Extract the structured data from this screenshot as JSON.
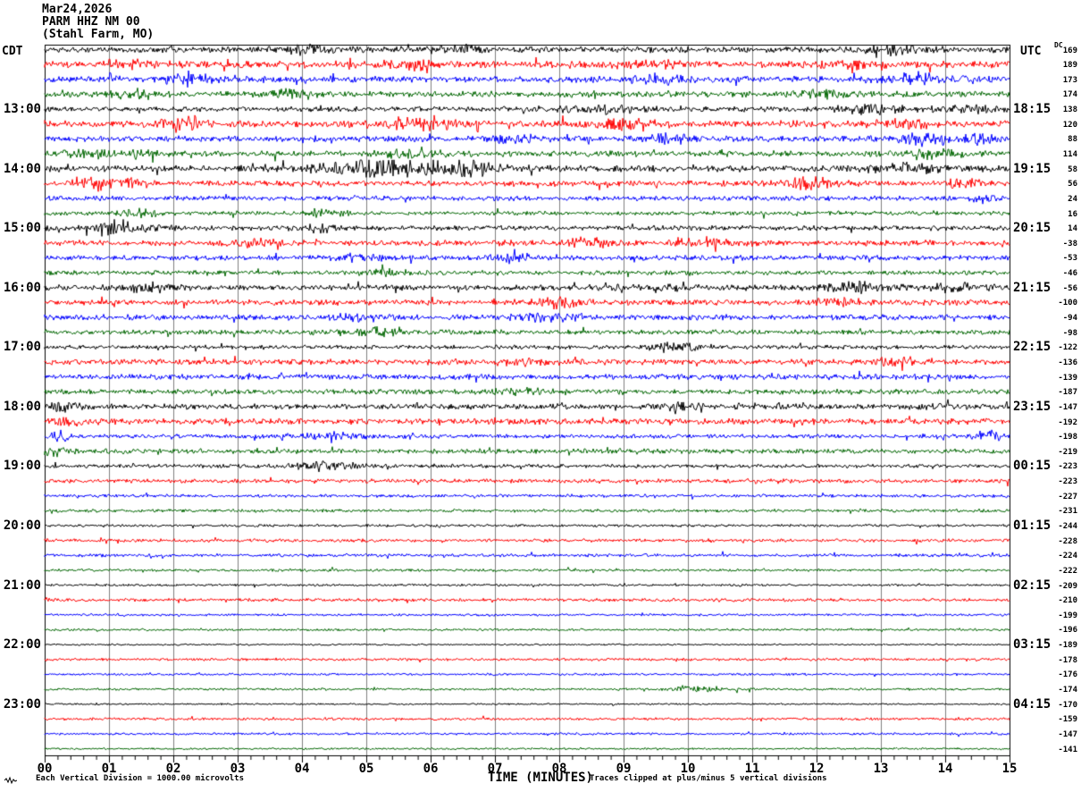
{
  "header": {
    "date": "Mar24,2026",
    "station": "PARM HHZ NM 00",
    "location": "(Stahl Farm, MO)"
  },
  "left_axis": {
    "tz_label": "CDT",
    "hour_labels": [
      {
        "row": 4,
        "label": "13:00"
      },
      {
        "row": 8,
        "label": "14:00"
      },
      {
        "row": 12,
        "label": "15:00"
      },
      {
        "row": 16,
        "label": "16:00"
      },
      {
        "row": 20,
        "label": "17:00"
      },
      {
        "row": 24,
        "label": "18:00"
      },
      {
        "row": 28,
        "label": "19:00"
      },
      {
        "row": 32,
        "label": "20:00"
      },
      {
        "row": 36,
        "label": "21:00"
      },
      {
        "row": 40,
        "label": "22:00"
      },
      {
        "row": 44,
        "label": "23:00"
      }
    ]
  },
  "right_axis": {
    "tz_label": "UTC",
    "dc_label": "DC",
    "hour_labels": [
      {
        "row": 4,
        "label": "18:15"
      },
      {
        "row": 8,
        "label": "19:15"
      },
      {
        "row": 12,
        "label": "20:15"
      },
      {
        "row": 16,
        "label": "21:15"
      },
      {
        "row": 20,
        "label": "22:15"
      },
      {
        "row": 24,
        "label": "23:15"
      },
      {
        "row": 28,
        "label": "00:15"
      },
      {
        "row": 32,
        "label": "01:15"
      },
      {
        "row": 36,
        "label": "02:15"
      },
      {
        "row": 40,
        "label": "03:15"
      },
      {
        "row": 44,
        "label": "04:15"
      }
    ]
  },
  "x_axis": {
    "title": "TIME (MINUTES)",
    "tick_labels": [
      "00",
      "01",
      "02",
      "03",
      "04",
      "05",
      "06",
      "07",
      "08",
      "09",
      "10",
      "11",
      "12",
      "13",
      "14",
      "15"
    ]
  },
  "footer": {
    "scale_note": "Each Vertical Division = 1000.00 microvolts",
    "clip_note": "Traces clipped at plus/minus 5 vertical divisions"
  },
  "colors": {
    "trace_cycle": [
      "#000000",
      "#ff0000",
      "#0000ff",
      "#006600"
    ],
    "grid": "#7f7f7f",
    "frame": "#000000",
    "background": "#ffffff"
  },
  "chart_data": {
    "type": "line",
    "title": "Helicorder seismogram PARM HHZ NM 00 (Stahl Farm, MO)",
    "x_range_minutes": [
      0,
      15
    ],
    "row_duration_minutes": 15,
    "rows_per_hour": 4,
    "num_rows": 48,
    "clip_divisions": 5,
    "microvolts_per_division": 1000.0,
    "rows": [
      {
        "dc": 169,
        "amp": 2.0,
        "bursts": [
          [
            4.1,
            2,
            0.3
          ],
          [
            6.4,
            2,
            0.25
          ],
          [
            13.2,
            2.5,
            0.3
          ]
        ]
      },
      {
        "dc": 189,
        "amp": 2.3,
        "bursts": [
          [
            1.3,
            2,
            0.3
          ],
          [
            5.8,
            2,
            0.4
          ],
          [
            9.4,
            2,
            0.3
          ],
          [
            12.4,
            2,
            0.3
          ]
        ]
      },
      {
        "dc": 173,
        "amp": 2.2,
        "bursts": [
          [
            2.2,
            2,
            0.3
          ],
          [
            9.5,
            2.5,
            0.25
          ],
          [
            13.6,
            3,
            0.3
          ]
        ]
      },
      {
        "dc": 174,
        "amp": 2.1,
        "bursts": [
          [
            1.4,
            2,
            0.25
          ],
          [
            3.9,
            2,
            0.25
          ],
          [
            12.1,
            2,
            0.3
          ]
        ]
      },
      {
        "dc": 138,
        "amp": 1.7,
        "bursts": [
          [
            8.8,
            2,
            0.6
          ],
          [
            12.9,
            2.5,
            0.4
          ],
          [
            14.4,
            2,
            0.3
          ]
        ]
      },
      {
        "dc": 120,
        "amp": 2.2,
        "bursts": [
          [
            2.1,
            3,
            0.3
          ],
          [
            5.9,
            4,
            0.35
          ],
          [
            9.0,
            2.5,
            0.3
          ],
          [
            13.3,
            2.5,
            0.3
          ]
        ]
      },
      {
        "dc": 88,
        "amp": 2.0,
        "bursts": [
          [
            7.3,
            2,
            0.3
          ],
          [
            9.6,
            2.5,
            0.3
          ],
          [
            13.7,
            3.5,
            0.25
          ],
          [
            14.5,
            2.5,
            0.2
          ]
        ]
      },
      {
        "dc": 114,
        "amp": 2.0,
        "bursts": [
          [
            0.7,
            2.5,
            0.2
          ],
          [
            1.4,
            2,
            0.2
          ],
          [
            5.6,
            2.5,
            0.3
          ],
          [
            13.8,
            2,
            0.3
          ]
        ]
      },
      {
        "dc": 58,
        "amp": 2.2,
        "bursts": [
          [
            4.4,
            2.5,
            0.3
          ],
          [
            5.2,
            6.5,
            0.25
          ],
          [
            6.0,
            3,
            0.5
          ],
          [
            6.6,
            3,
            0.3
          ],
          [
            13.4,
            2.5,
            0.4
          ]
        ]
      },
      {
        "dc": 56,
        "amp": 1.9,
        "bursts": [
          [
            0.75,
            3.5,
            0.2
          ],
          [
            1.35,
            2.5,
            0.2
          ],
          [
            11.9,
            3.5,
            0.3
          ],
          [
            14.3,
            2,
            0.2
          ]
        ]
      },
      {
        "dc": 24,
        "amp": 1.7,
        "bursts": [
          [
            14.6,
            2.5,
            0.15
          ]
        ]
      },
      {
        "dc": 16,
        "amp": 1.4,
        "bursts": [
          [
            1.5,
            2,
            0.2
          ],
          [
            4.35,
            2.5,
            0.2
          ]
        ]
      },
      {
        "dc": 14,
        "amp": 1.7,
        "bursts": [
          [
            1.15,
            5,
            0.3
          ],
          [
            4.3,
            2,
            0.2
          ]
        ]
      },
      {
        "dc": -38,
        "amp": 1.9,
        "bursts": [
          [
            3.2,
            2,
            0.25
          ],
          [
            8.5,
            2.5,
            0.3
          ],
          [
            10.2,
            2,
            0.3
          ]
        ]
      },
      {
        "dc": -53,
        "amp": 1.7,
        "bursts": [
          [
            4.9,
            2,
            0.25
          ],
          [
            7.3,
            2,
            0.25
          ]
        ]
      },
      {
        "dc": -46,
        "amp": 1.5,
        "bursts": [
          [
            5.3,
            2,
            0.25
          ]
        ]
      },
      {
        "dc": -56,
        "amp": 1.9,
        "bursts": [
          [
            1.6,
            2.5,
            0.25
          ],
          [
            9.3,
            2,
            0.4
          ],
          [
            12.6,
            2.5,
            0.35
          ],
          [
            14.2,
            2.5,
            0.3
          ]
        ]
      },
      {
        "dc": -100,
        "amp": 1.9,
        "bursts": [
          [
            8.0,
            2.5,
            0.3
          ],
          [
            12.4,
            2,
            0.25
          ]
        ]
      },
      {
        "dc": -94,
        "amp": 1.9,
        "bursts": [
          [
            4.9,
            2,
            0.25
          ],
          [
            7.8,
            2,
            0.3
          ]
        ]
      },
      {
        "dc": -98,
        "amp": 1.7,
        "bursts": [
          [
            5.2,
            2,
            0.25
          ]
        ]
      },
      {
        "dc": -122,
        "amp": 1.4,
        "bursts": [
          [
            9.8,
            2.5,
            0.25
          ]
        ]
      },
      {
        "dc": -136,
        "amp": 1.9,
        "bursts": [
          [
            7.4,
            2,
            0.3
          ],
          [
            13.3,
            2,
            0.3
          ]
        ]
      },
      {
        "dc": -139,
        "amp": 1.8,
        "bursts": []
      },
      {
        "dc": -187,
        "amp": 1.7,
        "bursts": [
          [
            7.4,
            1.5,
            0.3
          ]
        ]
      },
      {
        "dc": -147,
        "amp": 1.8,
        "bursts": [
          [
            0.3,
            2.5,
            0.2
          ],
          [
            9.9,
            1.5,
            0.3
          ],
          [
            13.9,
            1.5,
            0.3
          ]
        ]
      },
      {
        "dc": -192,
        "amp": 2.0,
        "bursts": [
          [
            0.5,
            1.5,
            0.3
          ]
        ]
      },
      {
        "dc": -198,
        "amp": 1.4,
        "bursts": [
          [
            0.25,
            3,
            0.15
          ],
          [
            4.5,
            1.5,
            0.5
          ],
          [
            14.7,
            4,
            0.15
          ]
        ]
      },
      {
        "dc": -219,
        "amp": 1.6,
        "bursts": [
          [
            0.15,
            3,
            0.15
          ]
        ]
      },
      {
        "dc": -223,
        "amp": 1.3,
        "bursts": [
          [
            4.4,
            2.5,
            0.35
          ]
        ]
      },
      {
        "dc": -223,
        "amp": 1.4,
        "bursts": []
      },
      {
        "dc": -227,
        "amp": 1.1,
        "bursts": []
      },
      {
        "dc": -231,
        "amp": 1.1,
        "bursts": []
      },
      {
        "dc": -244,
        "amp": 0.9,
        "bursts": []
      },
      {
        "dc": -228,
        "amp": 1.1,
        "bursts": []
      },
      {
        "dc": -224,
        "amp": 1.1,
        "bursts": []
      },
      {
        "dc": -222,
        "amp": 0.9,
        "bursts": []
      },
      {
        "dc": -209,
        "amp": 0.8,
        "bursts": []
      },
      {
        "dc": -210,
        "amp": 1.1,
        "bursts": []
      },
      {
        "dc": -199,
        "amp": 0.8,
        "bursts": []
      },
      {
        "dc": -196,
        "amp": 0.8,
        "bursts": []
      },
      {
        "dc": -189,
        "amp": 0.6,
        "bursts": []
      },
      {
        "dc": -178,
        "amp": 0.9,
        "bursts": []
      },
      {
        "dc": -176,
        "amp": 0.8,
        "bursts": []
      },
      {
        "dc": -174,
        "amp": 0.8,
        "bursts": [
          [
            10.2,
            2,
            0.3
          ]
        ]
      },
      {
        "dc": -170,
        "amp": 0.6,
        "bursts": []
      },
      {
        "dc": -159,
        "amp": 0.9,
        "bursts": []
      },
      {
        "dc": -147,
        "amp": 0.8,
        "bursts": []
      },
      {
        "dc": -141,
        "amp": 0.7,
        "bursts": []
      }
    ]
  }
}
